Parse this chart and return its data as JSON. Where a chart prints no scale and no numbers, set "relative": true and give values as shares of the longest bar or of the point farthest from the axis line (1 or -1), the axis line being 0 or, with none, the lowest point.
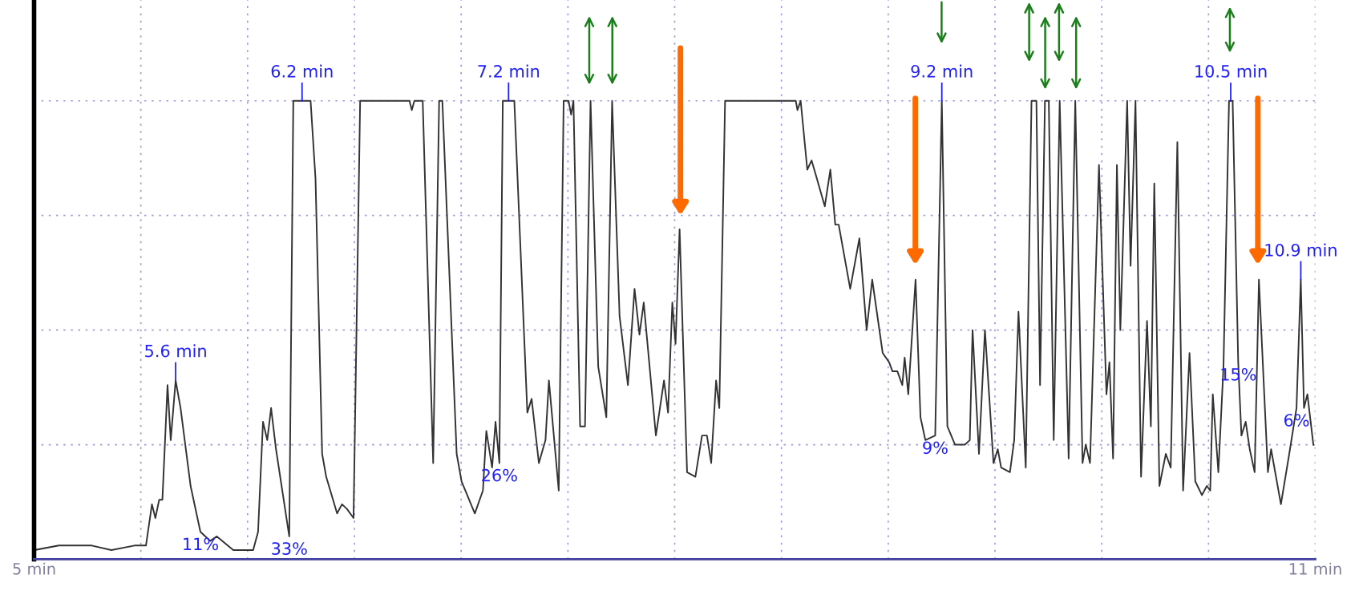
{
  "chart_data": {
    "type": "line",
    "relative": true,
    "x": [
      5.0,
      5.116,
      5.27,
      5.362,
      5.47,
      5.524,
      5.552,
      5.568,
      5.586,
      5.601,
      5.625,
      5.64,
      5.663,
      5.686,
      5.733,
      5.779,
      5.825,
      5.856,
      5.933,
      6.026,
      6.049,
      6.072,
      6.092,
      6.11,
      6.133,
      6.195,
      6.214,
      6.295,
      6.318,
      6.349,
      6.368,
      6.419,
      6.442,
      6.465,
      6.496,
      6.527,
      6.758,
      6.769,
      6.781,
      6.82,
      6.869,
      6.897,
      6.912,
      6.979,
      7.002,
      7.064,
      7.102,
      7.118,
      7.145,
      7.161,
      7.179,
      7.195,
      7.249,
      7.31,
      7.33,
      7.364,
      7.395,
      7.411,
      7.457,
      7.48,
      7.503,
      7.515,
      7.526,
      7.557,
      7.58,
      7.606,
      7.642,
      7.68,
      7.707,
      7.742,
      7.781,
      7.812,
      7.835,
      7.855,
      7.912,
      7.95,
      7.969,
      7.989,
      8.004,
      8.023,
      8.058,
      8.097,
      8.128,
      8.151,
      8.171,
      8.194,
      8.209,
      8.236,
      8.567,
      8.575,
      8.59,
      8.621,
      8.641,
      8.66,
      8.703,
      8.729,
      8.752,
      8.768,
      8.822,
      8.865,
      8.899,
      8.925,
      8.974,
      9.004,
      9.02,
      9.043,
      9.066,
      9.077,
      9.094,
      9.128,
      9.151,
      9.174,
      9.22,
      9.251,
      9.277,
      9.313,
      9.359,
      9.382,
      9.395,
      9.425,
      9.453,
      9.493,
      9.513,
      9.529,
      9.57,
      9.59,
      9.61,
      9.644,
      9.671,
      9.694,
      9.711,
      9.734,
      9.752,
      9.775,
      9.803,
      9.845,
      9.876,
      9.91,
      9.925,
      9.945,
      9.987,
      10.022,
      10.036,
      10.053,
      10.071,
      10.087,
      10.119,
      10.135,
      10.158,
      10.184,
      10.212,
      10.23,
      10.246,
      10.27,
      10.3,
      10.323,
      10.354,
      10.381,
      10.411,
      10.438,
      10.469,
      10.492,
      10.508,
      10.52,
      10.546,
      10.57,
      10.596,
      10.613,
      10.639,
      10.654,
      10.674,
      10.693,
      10.716,
      10.736,
      10.778,
      10.793,
      10.839,
      10.878,
      10.912,
      10.932,
      10.947,
      10.963,
      10.991
    ],
    "series": [
      {
        "color": "#333333",
        "values": [
          0.02,
          0.03,
          0.03,
          0.02,
          0.03,
          0.03,
          0.12,
          0.09,
          0.13,
          0.13,
          0.38,
          0.26,
          0.39,
          0.33,
          0.16,
          0.06,
          0.04,
          0.05,
          0.02,
          0.02,
          0.06,
          0.3,
          0.26,
          0.33,
          0.24,
          0.05,
          1,
          1,
          0.83,
          0.23,
          0.18,
          0.1,
          0.12,
          0.11,
          0.09,
          1,
          1,
          0.98,
          1,
          1,
          0.21,
          1,
          1,
          0.23,
          0.17,
          0.1,
          0.15,
          0.28,
          0.2,
          0.3,
          0.21,
          1,
          1,
          0.32,
          0.35,
          0.21,
          0.26,
          0.39,
          0.15,
          1,
          1,
          0.97,
          1,
          0.29,
          0.29,
          1,
          0.42,
          0.31,
          1,
          0.53,
          0.38,
          0.59,
          0.49,
          0.56,
          0.27,
          0.39,
          0.32,
          0.56,
          0.47,
          0.72,
          0.19,
          0.18,
          0.27,
          0.27,
          0.21,
          0.39,
          0.33,
          1,
          1,
          0.98,
          1,
          0.85,
          0.87,
          0.84,
          0.77,
          0.85,
          0.73,
          0.73,
          0.59,
          0.7,
          0.5,
          0.61,
          0.45,
          0.43,
          0.41,
          0.41,
          0.38,
          0.44,
          0.36,
          0.61,
          0.31,
          0.26,
          0.27,
          1,
          0.29,
          0.25,
          0.25,
          0.26,
          0.5,
          0.23,
          0.5,
          0.21,
          0.24,
          0.2,
          0.19,
          0.26,
          0.54,
          0.2,
          1,
          1,
          0.38,
          1,
          1,
          0.26,
          1,
          0.22,
          1,
          0.21,
          0.25,
          0.21,
          0.86,
          0.36,
          0.43,
          0.22,
          0.86,
          0.5,
          1,
          0.64,
          1,
          0.18,
          0.52,
          0.29,
          0.82,
          0.16,
          0.23,
          0.2,
          0.91,
          0.15,
          0.45,
          0.17,
          0.14,
          0.16,
          0.15,
          0.36,
          0.19,
          0.42,
          1,
          1,
          0.43,
          0.27,
          0.3,
          0.24,
          0.19,
          0.61,
          0.19,
          0.24,
          0.12,
          0.23,
          0.33,
          0.61,
          0.33,
          0.36,
          0.25
        ]
      }
    ],
    "xlim": [
      5,
      11
    ],
    "xticks": [
      {
        "value": 5,
        "label": "5 min"
      },
      {
        "value": 5.5,
        "label": null
      },
      {
        "value": 6,
        "label": null
      },
      {
        "value": 6.5,
        "label": null
      },
      {
        "value": 7,
        "label": null
      },
      {
        "value": 7.5,
        "label": null
      },
      {
        "value": 8,
        "label": null
      },
      {
        "value": 8.5,
        "label": null
      },
      {
        "value": 9,
        "label": null
      },
      {
        "value": 9.5,
        "label": null
      },
      {
        "value": 10,
        "label": null
      },
      {
        "value": 10.5,
        "label": null
      },
      {
        "value": 11,
        "label": "11 min"
      }
    ],
    "tick_labels": "x",
    "grid": true,
    "annotations": [
      {
        "text": "5.6 min",
        "x": 5.663,
        "y": 0.39
      },
      {
        "text": "6.2 min",
        "x": 6.255,
        "y": 1
      },
      {
        "text": "7.2 min",
        "x": 7.222,
        "y": 1
      },
      {
        "text": "9.2 min",
        "x": 9.251,
        "y": 1
      },
      {
        "text": "10.5 min",
        "x": 10.604,
        "y": 1
      },
      {
        "text": "10.9 min",
        "x": 10.932,
        "y": 0.61
      },
      {
        "text": "11%",
        "x": 5.779,
        "y": 0.06
      },
      {
        "text": "33%",
        "x": 6.195,
        "y": 0.05
      },
      {
        "text": "26%",
        "x": 7.179,
        "y": 0.21
      },
      {
        "text": "9%",
        "x": 9.22,
        "y": 0.27
      },
      {
        "text": "15%",
        "x": 10.639,
        "y": 0.43
      },
      {
        "text": "6%",
        "x": 10.912,
        "y": 0.33
      }
    ]
  }
}
